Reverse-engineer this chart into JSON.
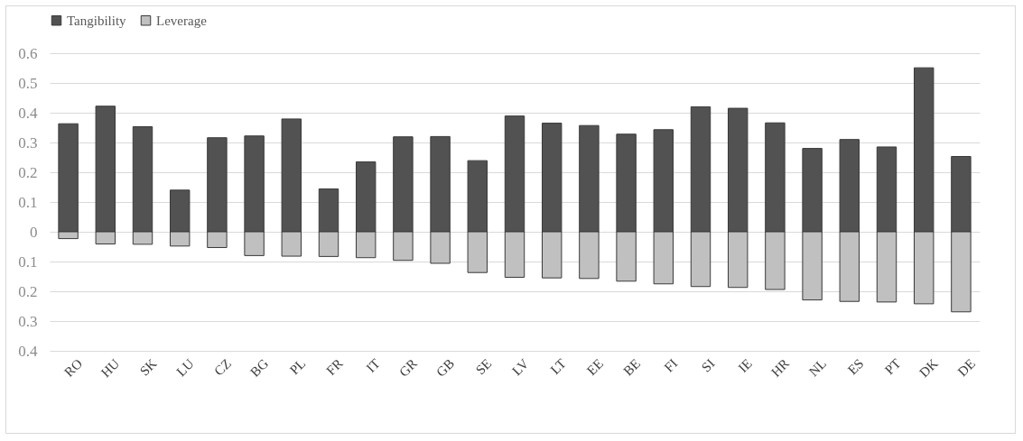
{
  "chart_data": {
    "type": "bar",
    "stacked": true,
    "legend": "top",
    "grid": "y",
    "categories": [
      "RO",
      "HU",
      "SK",
      "LU",
      "CZ",
      "BG",
      "PL",
      "FR",
      "IT",
      "GR",
      "GB",
      "SE",
      "LV",
      "LT",
      "EE",
      "BE",
      "FI",
      "SI",
      "IE",
      "HR",
      "NL",
      "ES",
      "PT",
      "DK",
      "DE"
    ],
    "series": [
      {
        "name": "Tangibility",
        "color": "#525252",
        "values": [
          0.363,
          0.422,
          0.353,
          0.14,
          0.316,
          0.322,
          0.379,
          0.144,
          0.235,
          0.319,
          0.32,
          0.239,
          0.389,
          0.365,
          0.357,
          0.328,
          0.343,
          0.42,
          0.415,
          0.366,
          0.28,
          0.31,
          0.285,
          0.551,
          0.253
        ]
      },
      {
        "name": "Leverage",
        "color": "#c0c0c0",
        "values": [
          -0.023,
          -0.041,
          -0.042,
          -0.048,
          -0.053,
          -0.08,
          -0.082,
          -0.083,
          -0.087,
          -0.096,
          -0.106,
          -0.137,
          -0.153,
          -0.155,
          -0.157,
          -0.166,
          -0.175,
          -0.184,
          -0.187,
          -0.194,
          -0.229,
          -0.234,
          -0.236,
          -0.242,
          -0.269
        ]
      }
    ],
    "ylim": [
      -0.4,
      0.6
    ],
    "yticks": [
      {
        "value": -0.4,
        "label": "0.4"
      },
      {
        "value": -0.3,
        "label": "0.3"
      },
      {
        "value": -0.2,
        "label": "0.2"
      },
      {
        "value": -0.1,
        "label": "0.1"
      },
      0,
      0.1,
      0.2,
      0.3,
      0.4,
      0.5,
      0.6
    ]
  }
}
